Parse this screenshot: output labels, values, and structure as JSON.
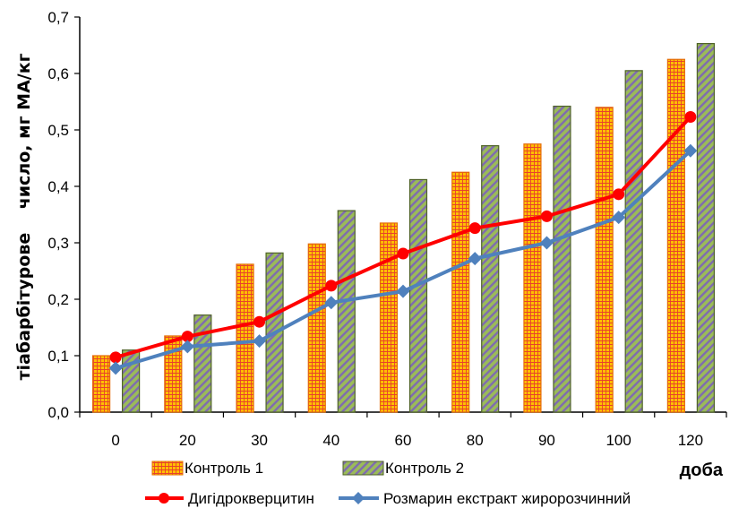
{
  "chart_data": {
    "type": "bar",
    "categories": [
      "0",
      "20",
      "30",
      "40",
      "60",
      "80",
      "90",
      "100",
      "120"
    ],
    "bar_series": [
      {
        "name": "Контроль 1",
        "values": [
          0.1,
          0.135,
          0.262,
          0.298,
          0.335,
          0.425,
          0.475,
          0.54,
          0.625
        ],
        "fill": "#FFC000",
        "grid": "#E8412C",
        "stroke": "#E46C0A"
      },
      {
        "name": "Контроль 2",
        "values": [
          0.11,
          0.172,
          0.282,
          0.357,
          0.412,
          0.472,
          0.542,
          0.605,
          0.653
        ],
        "fill": "#9BBB59",
        "hatch": "#7F6BB0",
        "stroke": "#4F6228"
      }
    ],
    "line_series": [
      {
        "name": "Дигідрокверцитин",
        "values": [
          0.097,
          0.134,
          0.16,
          0.224,
          0.281,
          0.326,
          0.347,
          0.386,
          0.523
        ],
        "color": "#FF0000",
        "marker": "circle"
      },
      {
        "name": "Розмарин екстракт жиророзчинний",
        "values": [
          0.078,
          0.116,
          0.126,
          0.194,
          0.214,
          0.272,
          0.3,
          0.345,
          0.463
        ],
        "color": "#4F81BD",
        "marker": "diamond"
      }
    ],
    "ylim": [
      0,
      0.7
    ],
    "yticks": [
      "0,0",
      "0,1",
      "0,2",
      "0,3",
      "0,4",
      "0,5",
      "0,6",
      "0,7"
    ],
    "ylabel": "тіабарбітурове    число, мг МА/кг",
    "xlabel": "доба",
    "grid": false,
    "legend_position": "bottom"
  }
}
